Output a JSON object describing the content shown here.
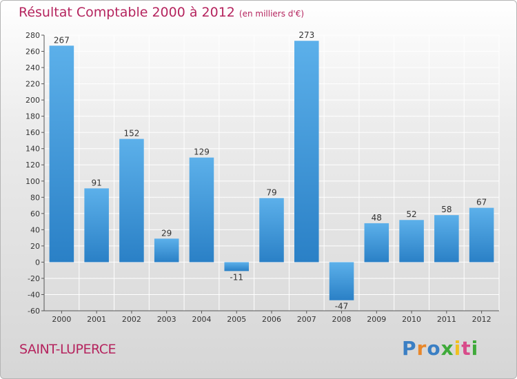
{
  "title": "Résultat Comptable 2000 à 2012",
  "subtitle": "(en milliers d'€)",
  "commune": "SAINT-LUPERCE",
  "brand": {
    "letters": [
      {
        "char": "P",
        "color": "#3a7fc4"
      },
      {
        "char": "r",
        "color": "#e8872a"
      },
      {
        "char": "o",
        "color": "#3a7fc4"
      },
      {
        "char": "x",
        "color": "#3faa3a"
      },
      {
        "char": "i",
        "color": "#f0c020"
      },
      {
        "char": "t",
        "color": "#d84b8a"
      },
      {
        "char": "i",
        "color": "#3faa3a"
      }
    ]
  },
  "colors": {
    "title": "#b5245e",
    "bar_top": "#5cb0ea",
    "bar_bottom": "#2a80c6",
    "axis": "#555555"
  },
  "chart_data": {
    "type": "bar",
    "title": "Résultat Comptable 2000 à 2012",
    "subtitle": "(en milliers d'€)",
    "xlabel": "",
    "ylabel": "",
    "categories": [
      "2000",
      "2001",
      "2002",
      "2003",
      "2004",
      "2005",
      "2006",
      "2007",
      "2008",
      "2009",
      "2010",
      "2011",
      "2012"
    ],
    "values": [
      267,
      91,
      152,
      29,
      129,
      -11,
      79,
      273,
      -47,
      48,
      52,
      58,
      67
    ],
    "ylim": [
      -60,
      280
    ],
    "yticks": [
      -60,
      -40,
      -20,
      0,
      20,
      40,
      60,
      80,
      100,
      120,
      140,
      160,
      180,
      200,
      220,
      240,
      260,
      280
    ],
    "grid": true
  }
}
